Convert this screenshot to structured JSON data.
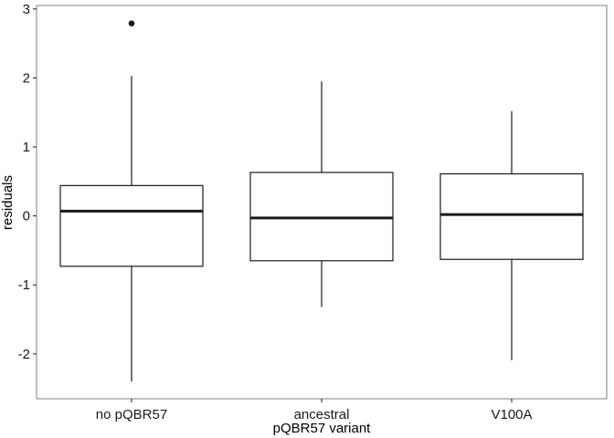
{
  "chart_data": {
    "type": "boxplot",
    "xlabel": "pQBR57 variant",
    "ylabel": "residuals",
    "ylim": [
      -2.65,
      3.05
    ],
    "yticks": [
      3,
      2,
      1,
      0,
      -1,
      -2
    ],
    "ytick_labels": [
      "3",
      "2",
      "1",
      "0",
      "-1",
      "-2"
    ],
    "grid": false,
    "legend": "none",
    "categories": [
      "no pQBR57",
      "ancestral",
      "V100A"
    ],
    "boxes": [
      {
        "category": "no pQBR57",
        "whisker_low": -2.4,
        "q1": -0.73,
        "median": 0.07,
        "q3": 0.44,
        "whisker_high": 2.03,
        "outliers": [
          2.79
        ]
      },
      {
        "category": "ancestral",
        "whisker_low": -1.32,
        "q1": -0.65,
        "median": -0.03,
        "q3": 0.63,
        "whisker_high": 1.95,
        "outliers": []
      },
      {
        "category": "V100A",
        "whisker_low": -2.09,
        "q1": -0.63,
        "median": 0.02,
        "q3": 0.61,
        "whisker_high": 1.52,
        "outliers": []
      }
    ],
    "colors": {
      "box_fill": "#ffffff",
      "box_stroke": "#1a1a1a",
      "median": "#1a1a1a",
      "outlier": "#1a1a1a",
      "panel_border": "#7f7f7f",
      "tick_text": "#1a1a1a"
    }
  }
}
